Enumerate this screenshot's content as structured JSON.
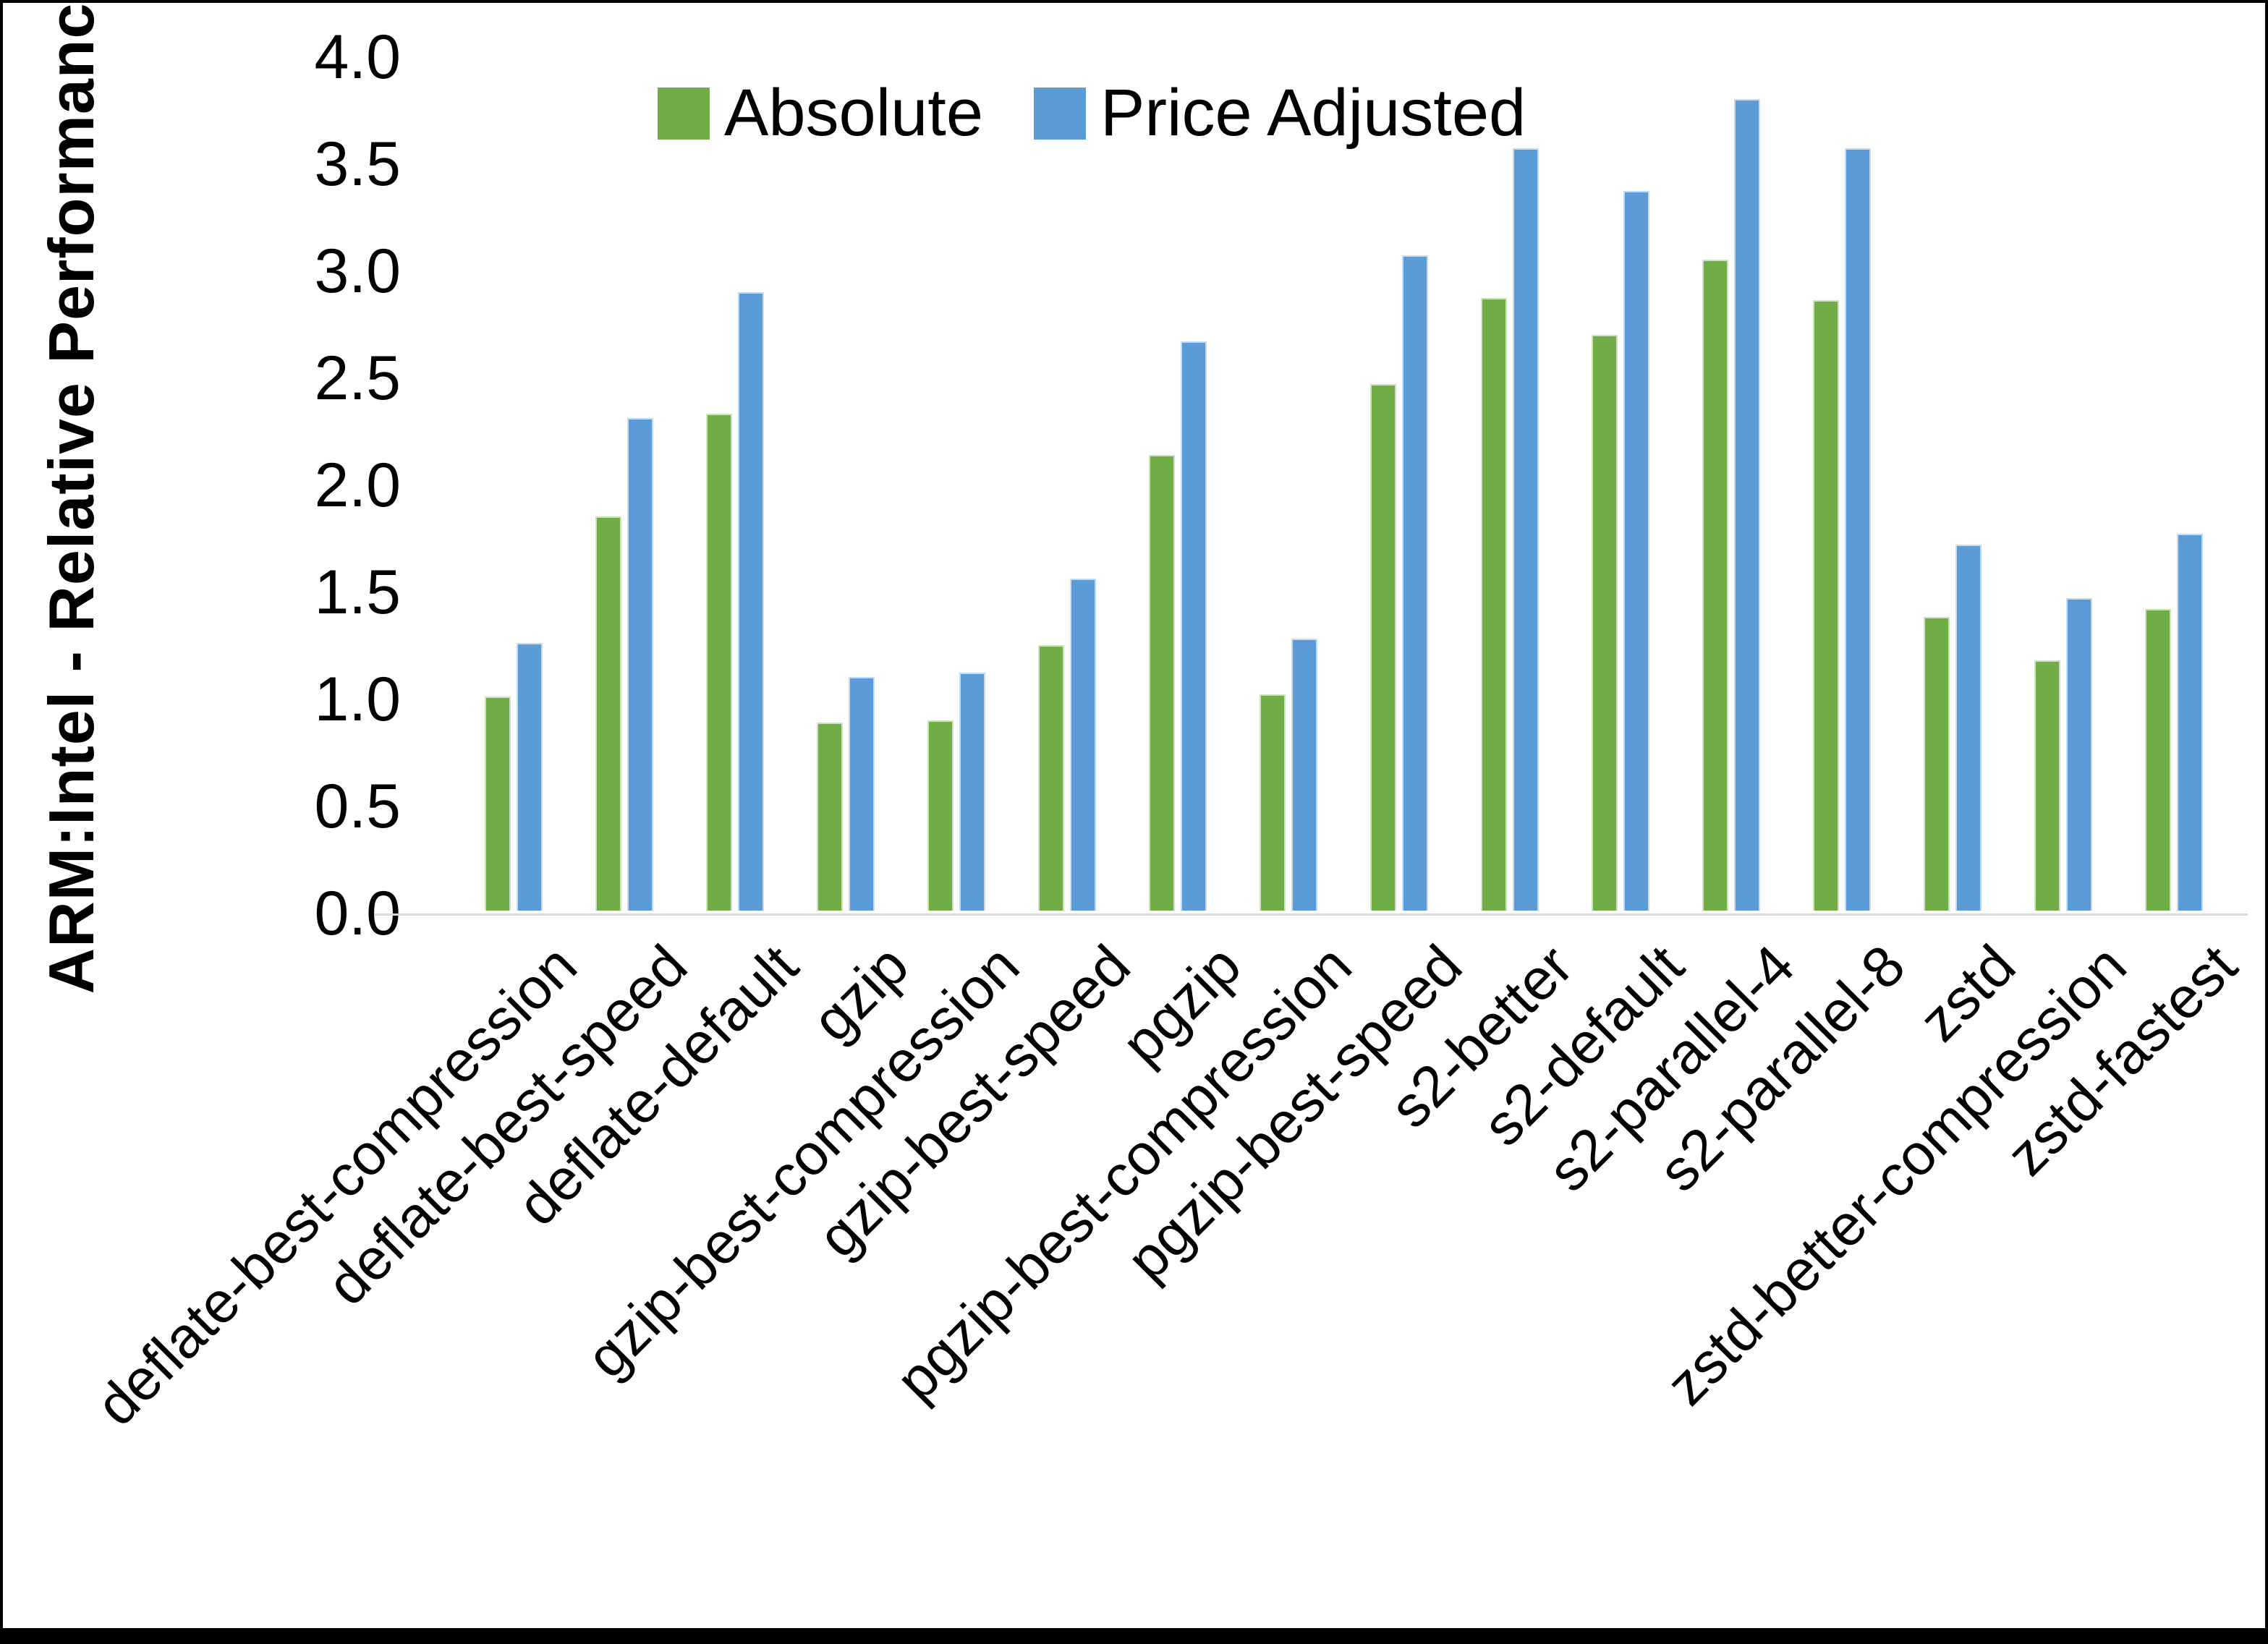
{
  "chart_data": {
    "type": "bar",
    "title": "",
    "xlabel": "",
    "ylabel": "ARM:Intel - Relative Performance",
    "ylim": [
      0.0,
      4.0
    ],
    "ytick_step": 0.5,
    "ytick_labels": [
      "0.0",
      "0.5",
      "1.0",
      "1.5",
      "2.0",
      "2.5",
      "3.0",
      "3.5",
      "4.0"
    ],
    "grid": false,
    "legend_position": "top-center",
    "categories": [
      "deflate-best-compression",
      "deflate-best-speed",
      "deflate-default",
      "gzip",
      "gzip-best-compression",
      "gzip-best-speed",
      "pgzip",
      "pgzip-best-compression",
      "pgzip-best-speed",
      "s2-better",
      "s2-default",
      "s2-parallel-4",
      "s2-parallel-8",
      "zstd",
      "zstd-better-compression",
      "zstd-fastest"
    ],
    "series": [
      {
        "name": "Absolute",
        "color": "#70AD47",
        "values": [
          1.0,
          1.84,
          2.32,
          0.88,
          0.89,
          1.24,
          2.13,
          1.01,
          2.46,
          2.86,
          2.69,
          3.04,
          2.85,
          1.37,
          1.17,
          1.41
        ]
      },
      {
        "name": "Price Adjusted",
        "color": "#5B9BD5",
        "values": [
          1.25,
          2.3,
          2.89,
          1.09,
          1.11,
          1.55,
          2.66,
          1.27,
          3.06,
          3.56,
          3.36,
          3.79,
          3.56,
          1.71,
          1.46,
          1.76
        ]
      }
    ]
  },
  "colors": {
    "axis_line": "#D9D9D9",
    "text": "#000000",
    "frame_border": "#000000"
  }
}
